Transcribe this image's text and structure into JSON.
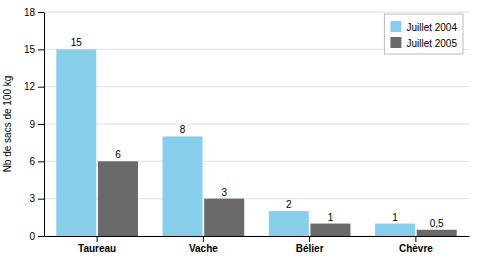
{
  "chart_data": {
    "type": "bar",
    "ylabel": "Nb de sacs de 100 kg",
    "categories": [
      "Taureau",
      "Vache",
      "Bélier",
      "Chèvre"
    ],
    "series": [
      {
        "name": "Juillet 2004",
        "color": "#87CEEB",
        "values": [
          15,
          8,
          2,
          1
        ]
      },
      {
        "name": "Juillet 2005",
        "color": "#696969",
        "values": [
          6,
          3,
          1,
          0.5
        ],
        "value_labels": [
          "6",
          "3",
          "1",
          "0,5"
        ]
      }
    ],
    "ylim": [
      0,
      18
    ],
    "yticks": [
      0,
      3,
      6,
      9,
      12,
      15,
      18
    ],
    "grid": true,
    "legend": "upper right",
    "data_labels": true
  }
}
